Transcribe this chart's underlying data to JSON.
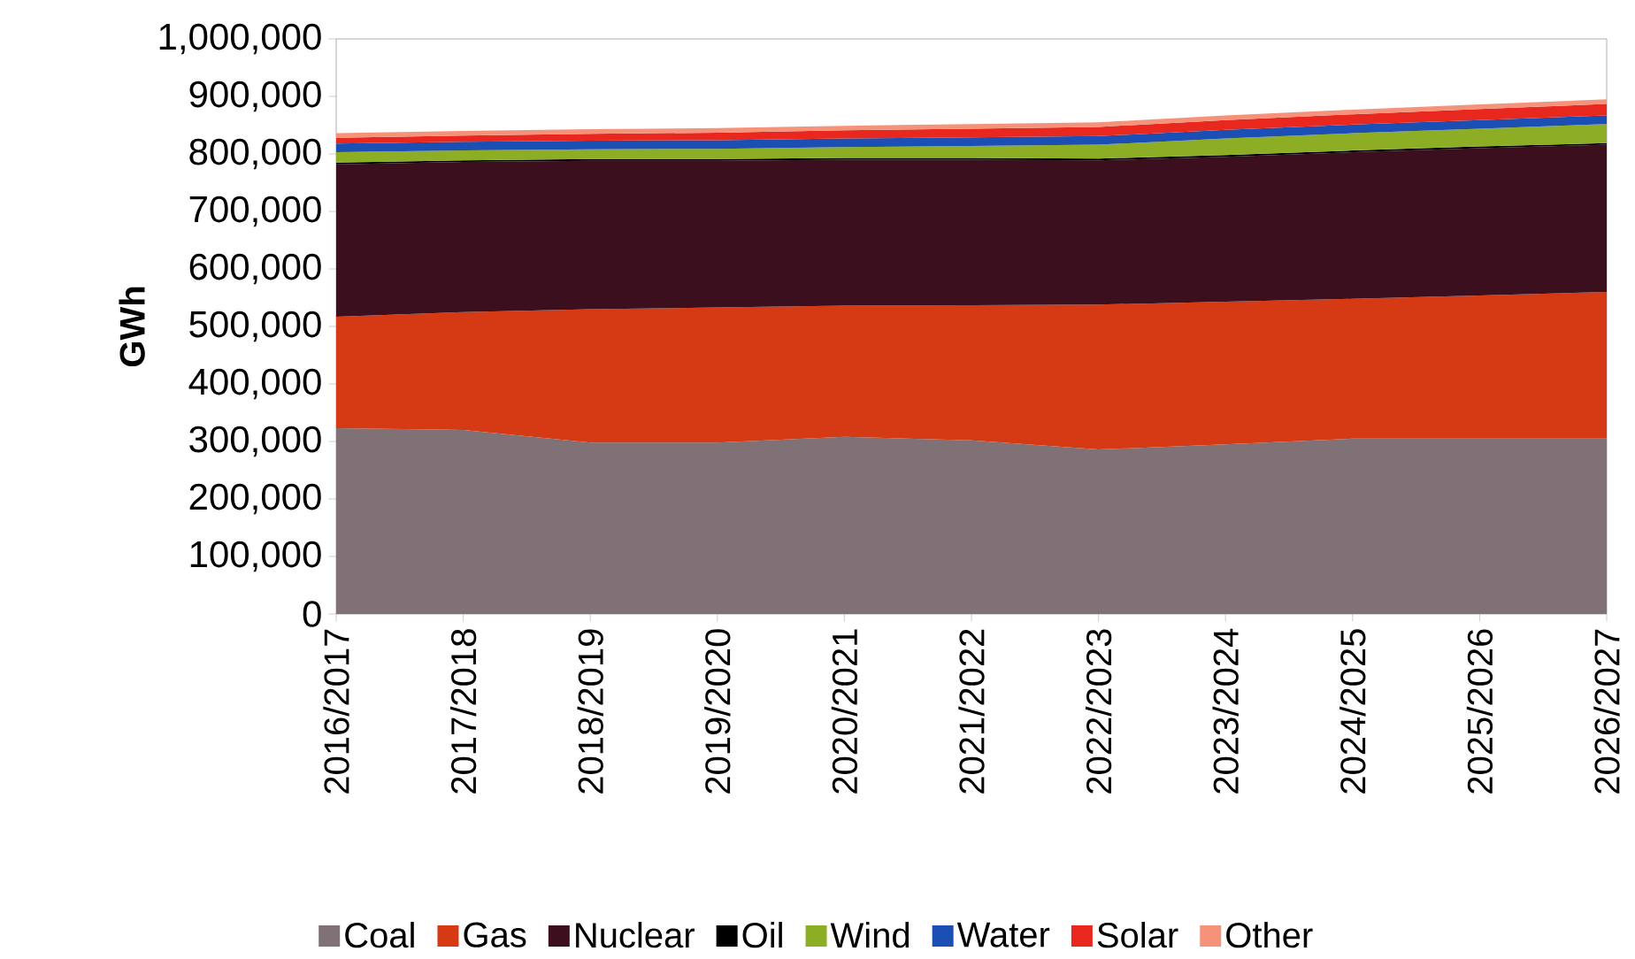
{
  "chart_data": {
    "type": "area",
    "stacked": true,
    "ylabel": "GWh",
    "legend": "bottom",
    "categories": [
      "2016/2017",
      "2017/2018",
      "2018/2019",
      "2019/2020",
      "2020/2021",
      "2021/2022",
      "2022/2023",
      "2023/2024",
      "2024/2025",
      "2025/2026",
      "2026/2027"
    ],
    "ylim": [
      0,
      1000000
    ],
    "yticks": [
      {
        "value": 0,
        "label": "0"
      },
      {
        "value": 100000,
        "label": "100,000"
      },
      {
        "value": 200000,
        "label": "200,000"
      },
      {
        "value": 300000,
        "label": "300,000"
      },
      {
        "value": 400000,
        "label": "400,000"
      },
      {
        "value": 500000,
        "label": "500,000"
      },
      {
        "value": 600000,
        "label": "600,000"
      },
      {
        "value": 700000,
        "label": "700,000"
      },
      {
        "value": 800000,
        "label": "800,000"
      },
      {
        "value": 900000,
        "label": "900,000"
      },
      {
        "value": 1000000,
        "label": "1,000,000"
      }
    ],
    "series": [
      {
        "name": "Coal",
        "color": "#7f7175",
        "values": [
          323000,
          320000,
          298000,
          298000,
          308000,
          302000,
          286000,
          295000,
          305000,
          305000,
          305000
        ]
      },
      {
        "name": "Gas",
        "color": "#d63a14",
        "values": [
          194000,
          205000,
          232000,
          235000,
          228000,
          235000,
          252000,
          248000,
          243000,
          249000,
          255000
        ]
      },
      {
        "name": "Nuclear",
        "color": "#3c0f1e",
        "values": [
          265000,
          261000,
          258000,
          255000,
          254000,
          253000,
          251000,
          252000,
          255000,
          256000,
          256000
        ]
      },
      {
        "name": "Oil",
        "color": "#000000",
        "values": [
          3000,
          3000,
          3000,
          3000,
          3000,
          3000,
          3000,
          3000,
          3000,
          3000,
          3000
        ]
      },
      {
        "name": "Wind",
        "color": "#8dae24",
        "values": [
          18000,
          17000,
          17000,
          18000,
          19000,
          21000,
          24000,
          29000,
          30000,
          31000,
          33000
        ]
      },
      {
        "name": "Water",
        "color": "#1b4fb3",
        "values": [
          15000,
          15000,
          15000,
          15000,
          15000,
          15000,
          15000,
          15000,
          15000,
          15000,
          15000
        ]
      },
      {
        "name": "Solar",
        "color": "#e8271e",
        "values": [
          10000,
          11000,
          12000,
          13000,
          14000,
          15000,
          16000,
          17000,
          18000,
          19000,
          20000
        ]
      },
      {
        "name": "Other",
        "color": "#f5937a",
        "values": [
          8000,
          8000,
          8000,
          8000,
          8000,
          8000,
          8000,
          8000,
          8000,
          8000,
          8000
        ]
      }
    ]
  }
}
